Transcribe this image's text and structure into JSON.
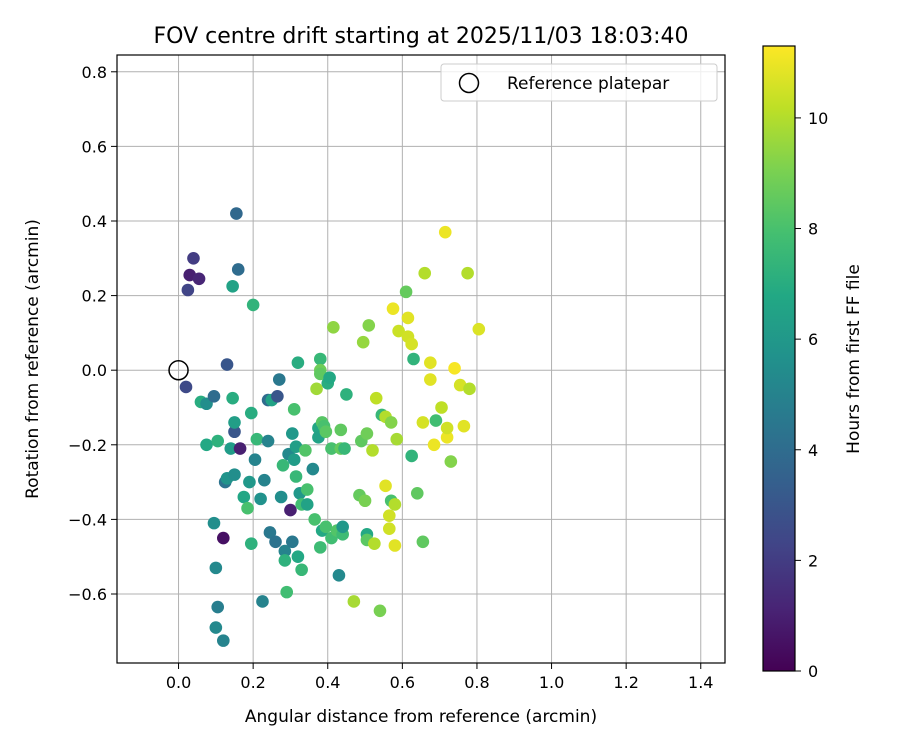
{
  "chart_data": {
    "type": "scatter",
    "title": "FOV centre drift starting at 2025/11/03 18:03:40",
    "xlabel": "Angular distance from reference (arcmin)",
    "ylabel": "Rotation from reference (arcmin)",
    "xlim": [
      -0.165,
      1.465
    ],
    "ylim": [
      -0.785,
      0.845
    ],
    "xticks": [
      0.0,
      0.2,
      0.4,
      0.6,
      0.8,
      1.0,
      1.2,
      1.4
    ],
    "xtick_labels": [
      "0.0",
      "0.2",
      "0.4",
      "0.6",
      "0.8",
      "1.0",
      "1.2",
      "1.4"
    ],
    "yticks": [
      -0.6,
      -0.4,
      -0.2,
      0.0,
      0.2,
      0.4,
      0.6,
      0.8
    ],
    "ytick_labels": [
      "−0.6",
      "−0.4",
      "−0.2",
      "0.0",
      "0.2",
      "0.4",
      "0.6",
      "0.8"
    ],
    "grid": true,
    "legend": {
      "position": "top-right",
      "entries": [
        "Reference platepar"
      ]
    },
    "reference_point": {
      "x": 0.0,
      "y": 0.0,
      "label": "Reference platepar"
    },
    "colorbar": {
      "label": "Hours from first FF file",
      "min": 0,
      "max": 11.3,
      "ticks": [
        0,
        2,
        4,
        6,
        8,
        10
      ],
      "tick_labels": [
        "0",
        "2",
        "4",
        "6",
        "8",
        "10"
      ],
      "colormap": "viridis"
    },
    "points": [
      {
        "x": 0.02,
        "y": -0.045,
        "h": 2.5
      },
      {
        "x": 0.025,
        "y": 0.215,
        "h": 2.3
      },
      {
        "x": 0.03,
        "y": 0.255,
        "h": 1.0
      },
      {
        "x": 0.04,
        "y": 0.3,
        "h": 2.0
      },
      {
        "x": 0.055,
        "y": 0.245,
        "h": 1.2
      },
      {
        "x": 0.06,
        "y": -0.085,
        "h": 7.0
      },
      {
        "x": 0.075,
        "y": -0.09,
        "h": 5.5
      },
      {
        "x": 0.075,
        "y": -0.2,
        "h": 6.8
      },
      {
        "x": 0.095,
        "y": -0.07,
        "h": 4.0
      },
      {
        "x": 0.095,
        "y": -0.41,
        "h": 5.5
      },
      {
        "x": 0.1,
        "y": -0.53,
        "h": 5.3
      },
      {
        "x": 0.1,
        "y": -0.69,
        "h": 5.3
      },
      {
        "x": 0.105,
        "y": -0.19,
        "h": 7.2
      },
      {
        "x": 0.105,
        "y": -0.635,
        "h": 4.8
      },
      {
        "x": 0.12,
        "y": -0.45,
        "h": 0.5
      },
      {
        "x": 0.12,
        "y": -0.725,
        "h": 5.0
      },
      {
        "x": 0.125,
        "y": -0.3,
        "h": 4.3
      },
      {
        "x": 0.13,
        "y": -0.29,
        "h": 5.8
      },
      {
        "x": 0.13,
        "y": 0.015,
        "h": 3.0
      },
      {
        "x": 0.14,
        "y": -0.21,
        "h": 6.2
      },
      {
        "x": 0.145,
        "y": -0.075,
        "h": 7.0
      },
      {
        "x": 0.145,
        "y": 0.225,
        "h": 6.5
      },
      {
        "x": 0.15,
        "y": -0.165,
        "h": 3.0
      },
      {
        "x": 0.15,
        "y": -0.14,
        "h": 6.3
      },
      {
        "x": 0.15,
        "y": -0.28,
        "h": 5.5
      },
      {
        "x": 0.155,
        "y": 0.42,
        "h": 3.8
      },
      {
        "x": 0.16,
        "y": 0.27,
        "h": 4.0
      },
      {
        "x": 0.165,
        "y": -0.21,
        "h": 1.0
      },
      {
        "x": 0.175,
        "y": -0.34,
        "h": 6.7
      },
      {
        "x": 0.185,
        "y": -0.37,
        "h": 8.0
      },
      {
        "x": 0.19,
        "y": -0.3,
        "h": 6.0
      },
      {
        "x": 0.195,
        "y": -0.115,
        "h": 7.0
      },
      {
        "x": 0.195,
        "y": -0.465,
        "h": 7.2
      },
      {
        "x": 0.2,
        "y": 0.175,
        "h": 7.3
      },
      {
        "x": 0.205,
        "y": -0.24,
        "h": 5.0
      },
      {
        "x": 0.21,
        "y": -0.185,
        "h": 7.5
      },
      {
        "x": 0.22,
        "y": -0.345,
        "h": 5.7
      },
      {
        "x": 0.225,
        "y": -0.62,
        "h": 5.0
      },
      {
        "x": 0.23,
        "y": -0.295,
        "h": 5.0
      },
      {
        "x": 0.24,
        "y": -0.19,
        "h": 5.0
      },
      {
        "x": 0.24,
        "y": -0.08,
        "h": 4.0
      },
      {
        "x": 0.245,
        "y": -0.435,
        "h": 4.5
      },
      {
        "x": 0.25,
        "y": -0.08,
        "h": 6.5
      },
      {
        "x": 0.26,
        "y": -0.46,
        "h": 4.3
      },
      {
        "x": 0.265,
        "y": -0.07,
        "h": 3.0
      },
      {
        "x": 0.27,
        "y": -0.025,
        "h": 4.5
      },
      {
        "x": 0.275,
        "y": -0.34,
        "h": 5.5
      },
      {
        "x": 0.28,
        "y": -0.255,
        "h": 7.5
      },
      {
        "x": 0.285,
        "y": -0.485,
        "h": 5.0
      },
      {
        "x": 0.285,
        "y": -0.51,
        "h": 7.2
      },
      {
        "x": 0.29,
        "y": -0.595,
        "h": 7.8
      },
      {
        "x": 0.295,
        "y": -0.225,
        "h": 5.3
      },
      {
        "x": 0.3,
        "y": -0.375,
        "h": 1.0
      },
      {
        "x": 0.305,
        "y": -0.17,
        "h": 6.0
      },
      {
        "x": 0.305,
        "y": -0.46,
        "h": 4.5
      },
      {
        "x": 0.31,
        "y": -0.105,
        "h": 8.0
      },
      {
        "x": 0.31,
        "y": -0.24,
        "h": 6.2
      },
      {
        "x": 0.315,
        "y": -0.205,
        "h": 6.3
      },
      {
        "x": 0.315,
        "y": -0.285,
        "h": 7.5
      },
      {
        "x": 0.32,
        "y": -0.5,
        "h": 6.8
      },
      {
        "x": 0.32,
        "y": 0.02,
        "h": 7.0
      },
      {
        "x": 0.325,
        "y": -0.33,
        "h": 6.0
      },
      {
        "x": 0.33,
        "y": -0.36,
        "h": 7.8
      },
      {
        "x": 0.33,
        "y": -0.535,
        "h": 7.5
      },
      {
        "x": 0.34,
        "y": -0.215,
        "h": 8.2
      },
      {
        "x": 0.345,
        "y": -0.32,
        "h": 8.0
      },
      {
        "x": 0.345,
        "y": -0.36,
        "h": 6.5
      },
      {
        "x": 0.36,
        "y": -0.265,
        "h": 5.3
      },
      {
        "x": 0.365,
        "y": -0.4,
        "h": 8.0
      },
      {
        "x": 0.37,
        "y": -0.05,
        "h": 9.7
      },
      {
        "x": 0.375,
        "y": -0.155,
        "h": 6.7
      },
      {
        "x": 0.375,
        "y": -0.18,
        "h": 6.5
      },
      {
        "x": 0.38,
        "y": 0.03,
        "h": 7.5
      },
      {
        "x": 0.38,
        "y": 0.0,
        "h": 8.8
      },
      {
        "x": 0.38,
        "y": -0.01,
        "h": 8.5
      },
      {
        "x": 0.38,
        "y": -0.475,
        "h": 7.7
      },
      {
        "x": 0.385,
        "y": -0.14,
        "h": 8.3
      },
      {
        "x": 0.385,
        "y": -0.43,
        "h": 6.8
      },
      {
        "x": 0.39,
        "y": -0.15,
        "h": 8.0
      },
      {
        "x": 0.395,
        "y": -0.42,
        "h": 8.0
      },
      {
        "x": 0.395,
        "y": -0.165,
        "h": 8.4
      },
      {
        "x": 0.4,
        "y": -0.035,
        "h": 7.0
      },
      {
        "x": 0.405,
        "y": -0.02,
        "h": 6.8
      },
      {
        "x": 0.41,
        "y": -0.21,
        "h": 8.0
      },
      {
        "x": 0.41,
        "y": -0.45,
        "h": 7.8
      },
      {
        "x": 0.415,
        "y": 0.115,
        "h": 9.4
      },
      {
        "x": 0.425,
        "y": -0.43,
        "h": 8.2
      },
      {
        "x": 0.43,
        "y": -0.55,
        "h": 5.3
      },
      {
        "x": 0.435,
        "y": -0.21,
        "h": 8.6
      },
      {
        "x": 0.435,
        "y": -0.16,
        "h": 8.5
      },
      {
        "x": 0.44,
        "y": -0.44,
        "h": 7.7
      },
      {
        "x": 0.44,
        "y": -0.42,
        "h": 6.0
      },
      {
        "x": 0.445,
        "y": -0.21,
        "h": 7.5
      },
      {
        "x": 0.45,
        "y": -0.065,
        "h": 7.2
      },
      {
        "x": 0.47,
        "y": -0.62,
        "h": 9.8
      },
      {
        "x": 0.485,
        "y": -0.335,
        "h": 8.6
      },
      {
        "x": 0.49,
        "y": -0.19,
        "h": 8.5
      },
      {
        "x": 0.495,
        "y": 0.075,
        "h": 9.5
      },
      {
        "x": 0.5,
        "y": -0.35,
        "h": 9.0
      },
      {
        "x": 0.505,
        "y": -0.44,
        "h": 6.8
      },
      {
        "x": 0.505,
        "y": -0.455,
        "h": 8.4
      },
      {
        "x": 0.505,
        "y": -0.17,
        "h": 8.8
      },
      {
        "x": 0.51,
        "y": 0.12,
        "h": 9.2
      },
      {
        "x": 0.52,
        "y": -0.215,
        "h": 10.0
      },
      {
        "x": 0.525,
        "y": -0.465,
        "h": 10.0
      },
      {
        "x": 0.53,
        "y": -0.075,
        "h": 10.2
      },
      {
        "x": 0.54,
        "y": -0.645,
        "h": 9.0
      },
      {
        "x": 0.545,
        "y": -0.12,
        "h": 7.5
      },
      {
        "x": 0.555,
        "y": -0.125,
        "h": 10.0
      },
      {
        "x": 0.555,
        "y": -0.31,
        "h": 10.8
      },
      {
        "x": 0.565,
        "y": -0.39,
        "h": 10.5
      },
      {
        "x": 0.565,
        "y": -0.425,
        "h": 10.5
      },
      {
        "x": 0.57,
        "y": -0.14,
        "h": 9.2
      },
      {
        "x": 0.57,
        "y": -0.35,
        "h": 8.0
      },
      {
        "x": 0.575,
        "y": 0.165,
        "h": 11.0
      },
      {
        "x": 0.58,
        "y": -0.47,
        "h": 10.8
      },
      {
        "x": 0.58,
        "y": -0.36,
        "h": 10.0
      },
      {
        "x": 0.585,
        "y": -0.185,
        "h": 9.8
      },
      {
        "x": 0.59,
        "y": 0.105,
        "h": 10.4
      },
      {
        "x": 0.61,
        "y": 0.21,
        "h": 8.6
      },
      {
        "x": 0.615,
        "y": 0.14,
        "h": 10.8
      },
      {
        "x": 0.615,
        "y": 0.09,
        "h": 10.5
      },
      {
        "x": 0.625,
        "y": 0.07,
        "h": 10.6
      },
      {
        "x": 0.625,
        "y": -0.23,
        "h": 7.3
      },
      {
        "x": 0.63,
        "y": 0.03,
        "h": 7.3
      },
      {
        "x": 0.64,
        "y": -0.33,
        "h": 8.5
      },
      {
        "x": 0.655,
        "y": -0.46,
        "h": 8.5
      },
      {
        "x": 0.655,
        "y": -0.14,
        "h": 10.6
      },
      {
        "x": 0.66,
        "y": 0.26,
        "h": 10.0
      },
      {
        "x": 0.675,
        "y": 0.02,
        "h": 10.8
      },
      {
        "x": 0.675,
        "y": -0.025,
        "h": 10.8
      },
      {
        "x": 0.685,
        "y": -0.2,
        "h": 11.0
      },
      {
        "x": 0.69,
        "y": -0.135,
        "h": 7.8
      },
      {
        "x": 0.705,
        "y": -0.1,
        "h": 10.2
      },
      {
        "x": 0.715,
        "y": 0.37,
        "h": 11.0
      },
      {
        "x": 0.72,
        "y": -0.18,
        "h": 11.0
      },
      {
        "x": 0.72,
        "y": -0.155,
        "h": 10.5
      },
      {
        "x": 0.73,
        "y": -0.245,
        "h": 9.2
      },
      {
        "x": 0.74,
        "y": 0.005,
        "h": 11.2
      },
      {
        "x": 0.755,
        "y": -0.04,
        "h": 10.6
      },
      {
        "x": 0.765,
        "y": -0.15,
        "h": 10.8
      },
      {
        "x": 0.775,
        "y": 0.26,
        "h": 10.0
      },
      {
        "x": 0.78,
        "y": -0.05,
        "h": 10.0
      },
      {
        "x": 0.805,
        "y": 0.11,
        "h": 10.7
      }
    ]
  }
}
